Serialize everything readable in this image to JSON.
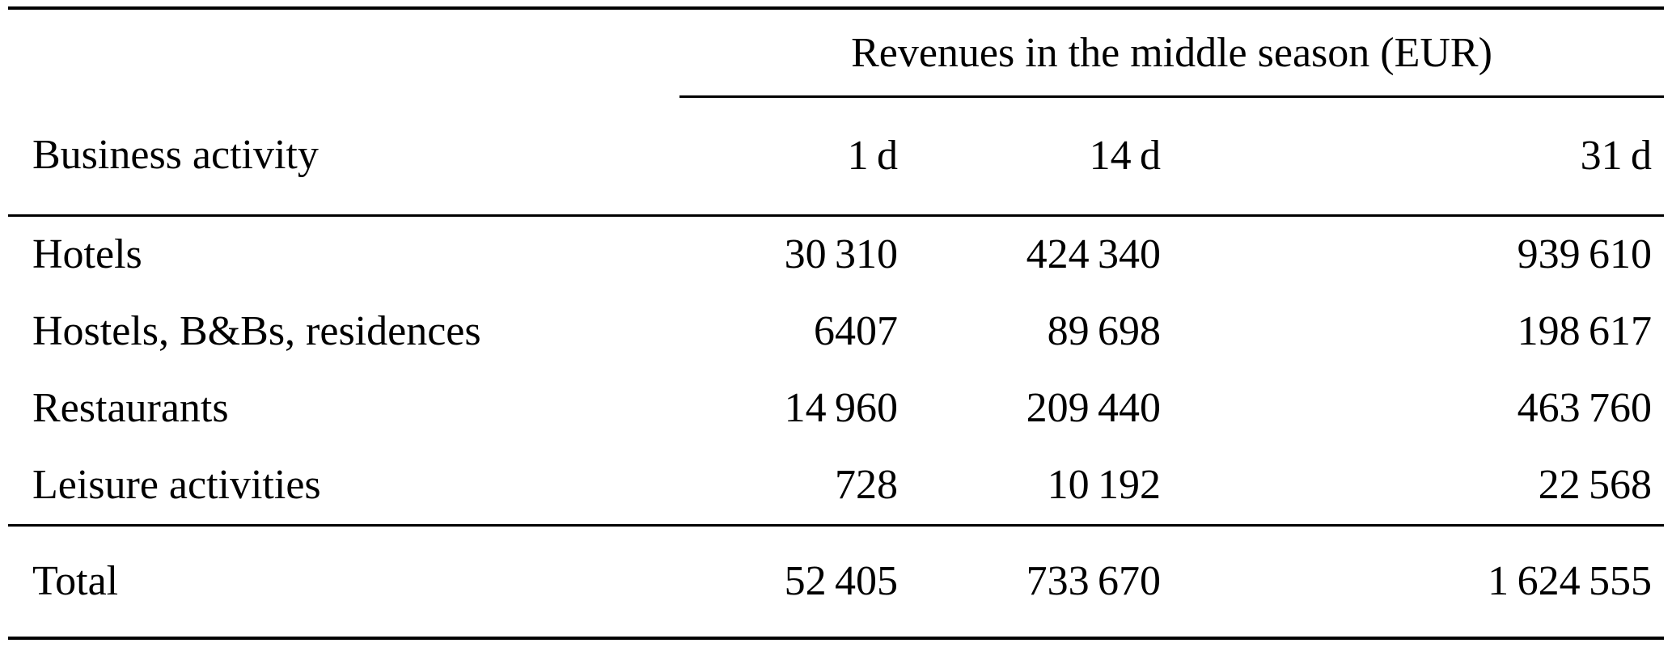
{
  "table": {
    "span_header": "Revenues in the middle season (EUR)",
    "col_headers": [
      "Business activity",
      "1 d",
      "14 d",
      "31 d"
    ],
    "rows": [
      {
        "label": "Hotels",
        "values": [
          "30 310",
          "424 340",
          "939 610"
        ]
      },
      {
        "label": "Hostels, B&Bs, residences",
        "values": [
          "6407",
          "89 698",
          "198 617"
        ]
      },
      {
        "label": "Restaurants",
        "values": [
          "14 960",
          "209 440",
          "463 760"
        ]
      },
      {
        "label": "Leisure activities",
        "values": [
          "728",
          "10 192",
          "22 568"
        ]
      }
    ],
    "total": {
      "label": "Total",
      "values": [
        "52 405",
        "733 670",
        "1 624 555"
      ]
    }
  }
}
